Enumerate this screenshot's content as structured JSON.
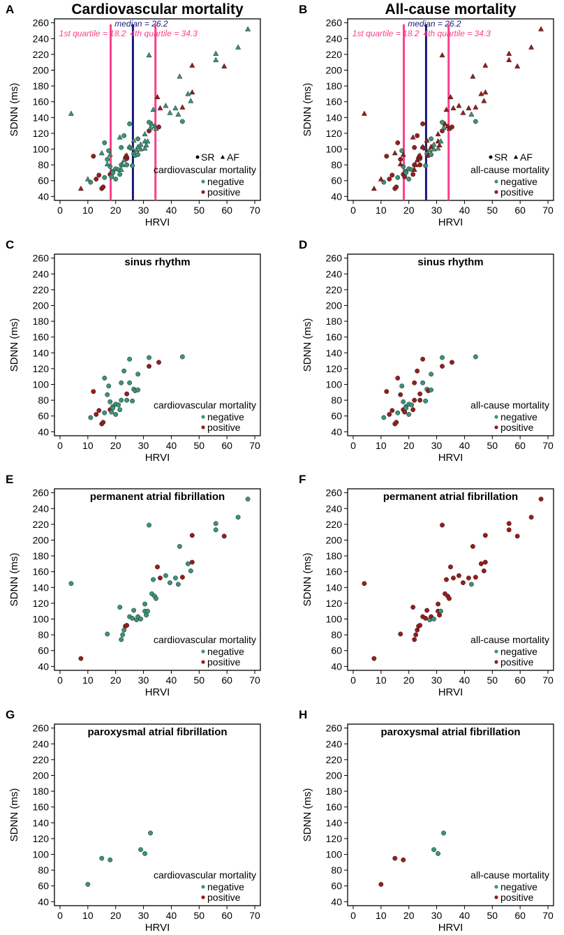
{
  "colors": {
    "negative": "#3a9478",
    "positive": "#9b1b1b",
    "median_line": "#1a1a7a",
    "quartile_line": "#ff3d8b",
    "axis": "#000000"
  },
  "common": {
    "xlabel": "HRVI",
    "ylabel": "SDNN (ms)",
    "xlim": [
      -2,
      72
    ],
    "ylim": [
      35,
      265
    ],
    "xticks": [
      "0",
      "10",
      "20",
      "30",
      "40",
      "50",
      "60",
      "70"
    ],
    "yticks": [
      "40",
      "60",
      "80",
      "100",
      "120",
      "140",
      "160",
      "180",
      "200",
      "220",
      "240",
      "260"
    ],
    "legend_negative": "negative",
    "legend_positive": "positive",
    "legend_sr": "SR",
    "legend_af": "AF"
  },
  "reference_lines": {
    "q1": {
      "value": 18.2,
      "label": "1st quartile = 18.2"
    },
    "median": {
      "value": 26.2,
      "label": "median = 26.2"
    },
    "q4": {
      "value": 34.3,
      "label": "4th quartile = 34.3"
    }
  },
  "points": {
    "sr": [
      [
        12,
        91,
        1,
        1
      ],
      [
        11,
        58,
        0,
        0
      ],
      [
        13,
        62,
        1,
        1
      ],
      [
        14,
        67,
        1,
        1
      ],
      [
        15,
        50,
        1,
        1
      ],
      [
        15.5,
        52,
        1,
        1
      ],
      [
        16,
        108,
        0,
        1
      ],
      [
        16,
        64,
        0,
        0
      ],
      [
        17,
        87,
        0,
        1
      ],
      [
        17.5,
        98,
        0,
        0
      ],
      [
        18,
        68,
        1,
        1
      ],
      [
        18,
        78,
        0,
        0
      ],
      [
        18.5,
        65,
        0,
        1
      ],
      [
        19,
        72,
        0,
        0
      ],
      [
        19,
        70,
        0,
        0
      ],
      [
        20,
        75,
        0,
        0
      ],
      [
        20,
        62,
        0,
        0
      ],
      [
        21,
        74,
        0,
        0
      ],
      [
        21.5,
        68,
        0,
        1
      ],
      [
        22,
        102,
        0,
        1
      ],
      [
        22,
        80,
        0,
        1
      ],
      [
        23,
        117,
        0,
        1
      ],
      [
        24,
        88,
        1,
        1
      ],
      [
        24,
        80,
        0,
        1
      ],
      [
        25,
        102,
        0,
        0
      ],
      [
        25,
        132,
        0,
        1
      ],
      [
        26,
        79,
        0,
        0
      ],
      [
        26.5,
        94,
        0,
        0
      ],
      [
        27,
        92,
        0,
        1
      ],
      [
        28,
        93,
        0,
        0
      ],
      [
        28,
        113,
        0,
        0
      ],
      [
        32,
        134,
        0,
        0
      ],
      [
        32,
        123,
        1,
        1
      ],
      [
        35.5,
        128,
        1,
        1
      ],
      [
        44,
        135,
        0,
        0
      ]
    ],
    "paf": [
      [
        10,
        62,
        0,
        1
      ],
      [
        15,
        95,
        0,
        1
      ],
      [
        18,
        93,
        0,
        1
      ],
      [
        29,
        106,
        0,
        0
      ],
      [
        30.5,
        101,
        0,
        0
      ],
      [
        32.5,
        127,
        0,
        0
      ]
    ],
    "permaf": [
      [
        4,
        145,
        0,
        1
      ],
      [
        7.5,
        50,
        1,
        1
      ],
      [
        17,
        81,
        0,
        1
      ],
      [
        21.5,
        115,
        0,
        1
      ],
      [
        22,
        74,
        0,
        1
      ],
      [
        22.5,
        80,
        0,
        1
      ],
      [
        23,
        86,
        0,
        1
      ],
      [
        23.5,
        91,
        1,
        1
      ],
      [
        24,
        92,
        1,
        1
      ],
      [
        25,
        103,
        0,
        1
      ],
      [
        26,
        101,
        0,
        1
      ],
      [
        26.5,
        111,
        0,
        1
      ],
      [
        27.5,
        99,
        0,
        0
      ],
      [
        28,
        103,
        0,
        1
      ],
      [
        29,
        100,
        0,
        0
      ],
      [
        30.5,
        110,
        0,
        1
      ],
      [
        30.5,
        119,
        0,
        1
      ],
      [
        31,
        105,
        0,
        1
      ],
      [
        31.5,
        110,
        0,
        0
      ],
      [
        32,
        219,
        0,
        1
      ],
      [
        33,
        132,
        0,
        1
      ],
      [
        33.5,
        150,
        0,
        1
      ],
      [
        34,
        129,
        0,
        1
      ],
      [
        34.5,
        126,
        0,
        1
      ],
      [
        35,
        166,
        1,
        1
      ],
      [
        36,
        152,
        1,
        1
      ],
      [
        38,
        155,
        0,
        1
      ],
      [
        39.5,
        146,
        0,
        1
      ],
      [
        41.5,
        152,
        0,
        1
      ],
      [
        42.5,
        144,
        0,
        0
      ],
      [
        43,
        192,
        0,
        1
      ],
      [
        44,
        153,
        1,
        1
      ],
      [
        46,
        170,
        0,
        1
      ],
      [
        47,
        161,
        0,
        1
      ],
      [
        47.5,
        172,
        1,
        1
      ],
      [
        47.5,
        206,
        1,
        1
      ],
      [
        56,
        221,
        0,
        1
      ],
      [
        56,
        213,
        0,
        1
      ],
      [
        59,
        205,
        1,
        1
      ],
      [
        64,
        229,
        0,
        1
      ],
      [
        67.5,
        252,
        0,
        1
      ]
    ]
  },
  "panels": [
    {
      "id": "A",
      "letter": "A",
      "title": "Cardiovascular mortality",
      "big_title": true,
      "subset": "all",
      "outcome_index": 2,
      "legend_title": "cardiovascular mortality",
      "show_lines": true,
      "show_shape_legend": true
    },
    {
      "id": "B",
      "letter": "B",
      "title": "All-cause mortality",
      "big_title": true,
      "subset": "all",
      "outcome_index": 3,
      "legend_title": "all-cause mortality",
      "show_lines": true,
      "show_shape_legend": true
    },
    {
      "id": "C",
      "letter": "C",
      "title": "sinus rhythm",
      "big_title": false,
      "subset": "sr",
      "outcome_index": 2,
      "legend_title": "cardiovascular mortality",
      "show_lines": false,
      "show_shape_legend": false
    },
    {
      "id": "D",
      "letter": "D",
      "title": "sinus rhythm",
      "big_title": false,
      "subset": "sr",
      "outcome_index": 3,
      "legend_title": "all-cause mortality",
      "show_lines": false,
      "show_shape_legend": false
    },
    {
      "id": "E",
      "letter": "E",
      "title": "permanent atrial fibrillation",
      "big_title": false,
      "subset": "permaf",
      "outcome_index": 2,
      "legend_title": "cardiovascular mortality",
      "show_lines": false,
      "show_shape_legend": false
    },
    {
      "id": "F",
      "letter": "F",
      "title": "permanent atrial fibrillation",
      "big_title": false,
      "subset": "permaf",
      "outcome_index": 3,
      "legend_title": "all-cause mortality",
      "show_lines": false,
      "show_shape_legend": false
    },
    {
      "id": "G",
      "letter": "G",
      "title": "paroxysmal atrial fibrillation",
      "big_title": false,
      "subset": "paf",
      "outcome_index": 2,
      "legend_title": "cardiovascular mortality",
      "show_lines": false,
      "show_shape_legend": false
    },
    {
      "id": "H",
      "letter": "H",
      "title": "paroxysmal atrial fibrillation",
      "big_title": false,
      "subset": "paf",
      "outcome_index": 3,
      "legend_title": "all-cause mortality",
      "show_lines": false,
      "show_shape_legend": false
    }
  ],
  "chart_data": [
    {
      "type": "scatter",
      "panel": "A",
      "title": "Cardiovascular mortality",
      "xlabel": "HRVI",
      "ylabel": "SDNN (ms)",
      "xlim": [
        -2,
        72
      ],
      "ylim": [
        35,
        265
      ],
      "series": [
        {
          "name": "negative"
        },
        {
          "name": "positive"
        }
      ],
      "legend": [
        "SR",
        "AF",
        "cardiovascular mortality",
        "negative",
        "positive"
      ],
      "annotations": [
        "1st quartile = 18.2",
        "median = 26.2",
        "4th quartile = 34.3"
      ],
      "point_source": "points.sr + points.paf + points.permaf (x, y, cv_death, all_cause_death)"
    },
    {
      "type": "scatter",
      "panel": "B",
      "title": "All-cause mortality",
      "xlabel": "HRVI",
      "ylabel": "SDNN (ms)",
      "xlim": [
        -2,
        72
      ],
      "ylim": [
        35,
        265
      ],
      "series": [
        {
          "name": "negative"
        },
        {
          "name": "positive"
        }
      ],
      "legend": [
        "SR",
        "AF",
        "all-cause mortality",
        "negative",
        "positive"
      ],
      "annotations": [
        "1st quartile = 18.2",
        "median = 26.2",
        "4th quartile = 34.3"
      ],
      "point_source": "points.sr + points.paf + points.permaf"
    },
    {
      "type": "scatter",
      "panel": "C",
      "title": "sinus rhythm",
      "xlabel": "HRVI",
      "ylabel": "SDNN (ms)",
      "point_source": "points.sr",
      "legend": [
        "cardiovascular mortality",
        "negative",
        "positive"
      ]
    },
    {
      "type": "scatter",
      "panel": "D",
      "title": "sinus rhythm",
      "xlabel": "HRVI",
      "ylabel": "SDNN (ms)",
      "point_source": "points.sr",
      "legend": [
        "all-cause mortality",
        "negative",
        "positive"
      ]
    },
    {
      "type": "scatter",
      "panel": "E",
      "title": "permanent atrial fibrillation",
      "xlabel": "HRVI",
      "ylabel": "SDNN (ms)",
      "point_source": "points.permaf",
      "legend": [
        "cardiovascular mortality",
        "negative",
        "positive"
      ]
    },
    {
      "type": "scatter",
      "panel": "F",
      "title": "permanent atrial fibrillation",
      "xlabel": "HRVI",
      "ylabel": "SDNN (ms)",
      "point_source": "points.permaf",
      "legend": [
        "all-cause mortality",
        "negative",
        "positive"
      ]
    },
    {
      "type": "scatter",
      "panel": "G",
      "title": "paroxysmal atrial fibrillation",
      "xlabel": "HRVI",
      "ylabel": "SDNN (ms)",
      "point_source": "points.paf",
      "legend": [
        "cardiovascular mortality",
        "negative",
        "positive"
      ]
    },
    {
      "type": "scatter",
      "panel": "H",
      "title": "paroxysmal atrial fibrillation",
      "xlabel": "HRVI",
      "ylabel": "SDNN (ms)",
      "point_source": "points.paf",
      "legend": [
        "all-cause mortality",
        "negative",
        "positive"
      ]
    }
  ]
}
